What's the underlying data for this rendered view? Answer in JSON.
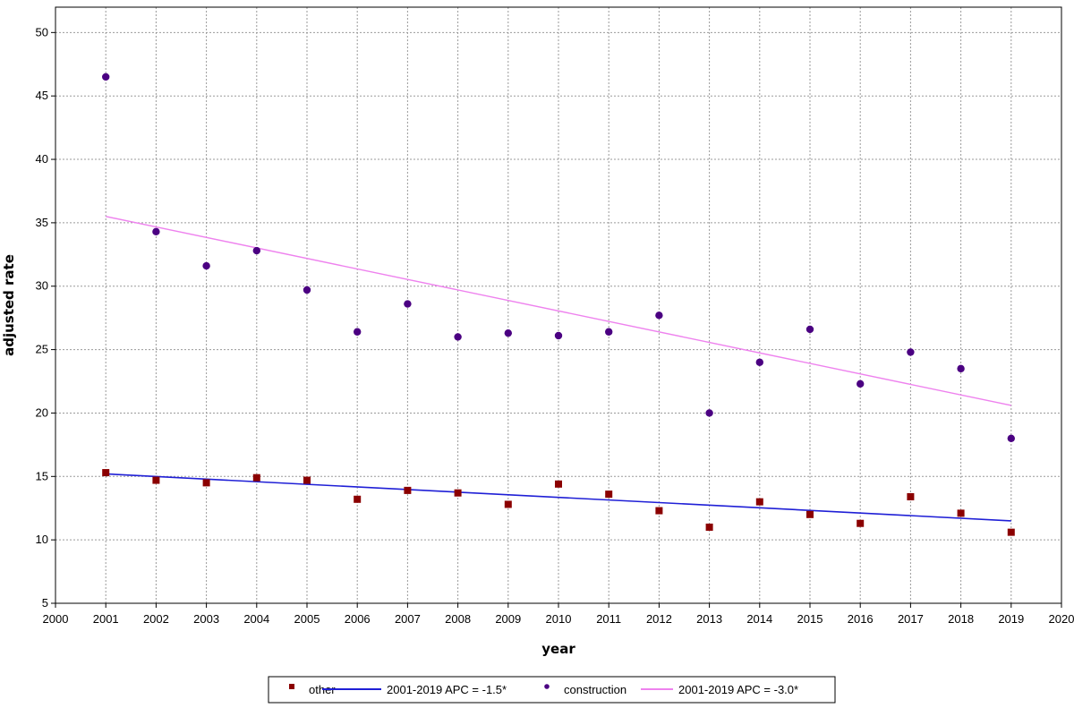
{
  "chart_data": {
    "type": "scatter",
    "title": "",
    "xlabel": "year",
    "ylabel": "adjusted rate",
    "xlim": [
      2000,
      2020
    ],
    "ylim": [
      5,
      52
    ],
    "xticks": [
      2000,
      2001,
      2002,
      2003,
      2004,
      2005,
      2006,
      2007,
      2008,
      2009,
      2010,
      2011,
      2012,
      2013,
      2014,
      2015,
      2016,
      2017,
      2018,
      2019,
      2020
    ],
    "yticks": [
      5,
      10,
      15,
      20,
      25,
      30,
      35,
      40,
      45,
      50
    ],
    "grid": true,
    "legend_position": "bottom",
    "series": [
      {
        "name": "other",
        "kind": "points",
        "marker": "square",
        "color": "#8b0000",
        "x": [
          2001,
          2002,
          2003,
          2004,
          2005,
          2006,
          2007,
          2008,
          2009,
          2010,
          2011,
          2012,
          2013,
          2014,
          2015,
          2016,
          2017,
          2018,
          2019
        ],
        "y": [
          15.3,
          14.7,
          14.5,
          14.9,
          14.7,
          13.2,
          13.9,
          13.7,
          12.8,
          14.4,
          13.6,
          12.3,
          11.0,
          13.0,
          12.0,
          11.3,
          13.4,
          12.1,
          10.6
        ]
      },
      {
        "name": "2001-2019 APC  = -1.5*",
        "kind": "line",
        "color": "#1f1fd6",
        "x": [
          2001,
          2019
        ],
        "y": [
          15.2,
          11.5
        ]
      },
      {
        "name": "construction",
        "kind": "points",
        "marker": "circle",
        "color": "#4b0082",
        "x": [
          2001,
          2002,
          2003,
          2004,
          2005,
          2006,
          2007,
          2008,
          2009,
          2010,
          2011,
          2012,
          2013,
          2014,
          2015,
          2016,
          2017,
          2018,
          2019
        ],
        "y": [
          46.5,
          34.3,
          31.6,
          32.8,
          29.7,
          26.4,
          28.6,
          26.0,
          26.3,
          26.1,
          26.4,
          27.7,
          20.0,
          24.0,
          26.6,
          22.3,
          24.8,
          23.5,
          18.0
        ]
      },
      {
        "name": "2001-2019 APC  = -3.0*",
        "kind": "line",
        "color": "#ee82ee",
        "x": [
          2001,
          2019
        ],
        "y": [
          35.5,
          20.6
        ]
      }
    ]
  }
}
